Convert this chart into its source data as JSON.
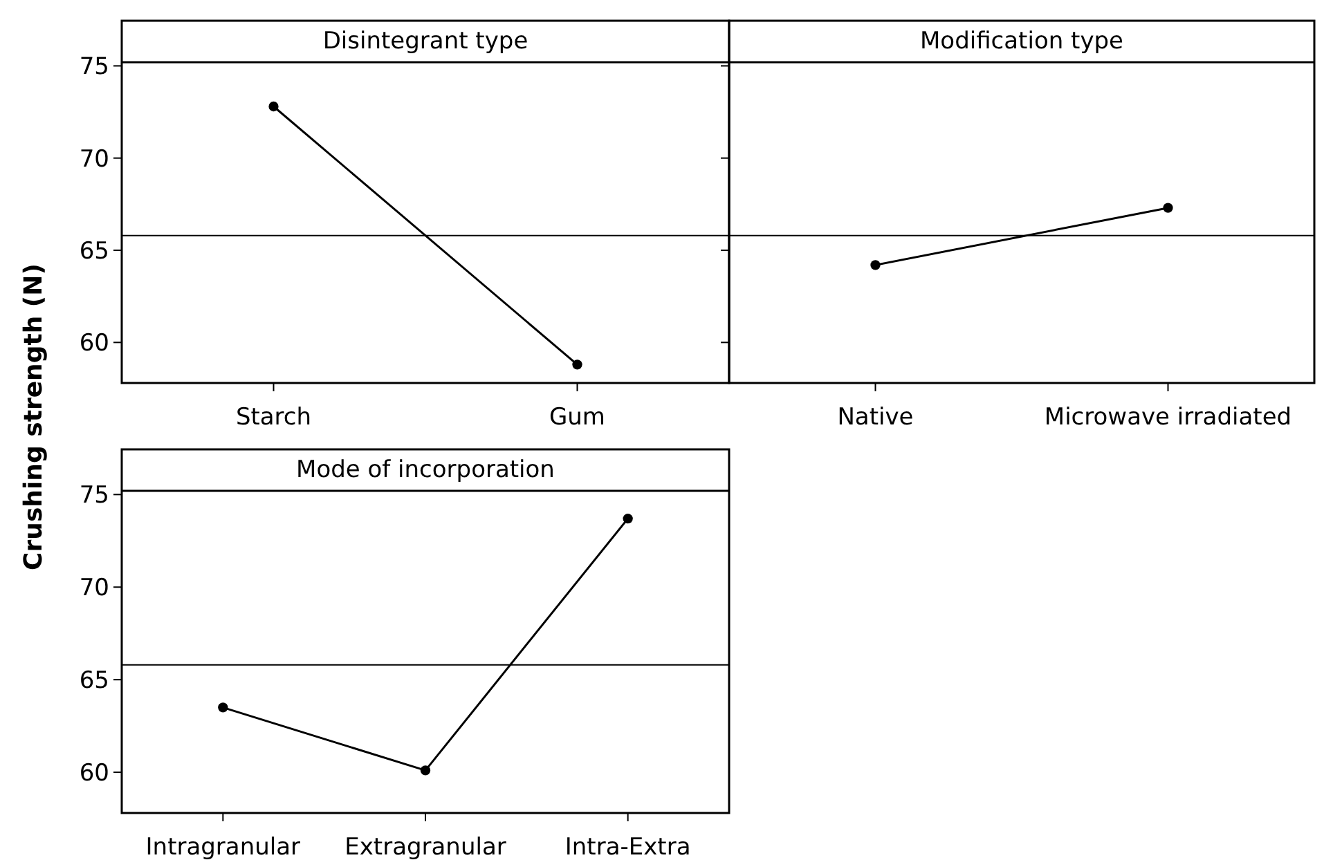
{
  "chart_data": [
    {
      "type": "line",
      "title": "Disintegrant type",
      "ylabel": "Crushing strength (N)",
      "categories": [
        "Starch",
        "Gum"
      ],
      "series": [
        {
          "color": "#000000",
          "values": [
            72.8,
            58.8
          ]
        }
      ],
      "marker": "circle",
      "ylim": [
        57.8,
        75.2
      ],
      "yticks": [
        60,
        65,
        70,
        75
      ],
      "ref_lines": [
        {
          "axis": "y",
          "value": 65.8,
          "color": "#000000"
        }
      ]
    },
    {
      "type": "line",
      "title": "Modification type",
      "categories": [
        "Native",
        "Microwave irradiated"
      ],
      "series": [
        {
          "color": "#000000",
          "values": [
            64.2,
            67.3
          ]
        }
      ],
      "marker": "circle",
      "ylim": [
        57.8,
        75.2
      ],
      "yticks": [
        60,
        65,
        70,
        75
      ],
      "tick_labels": "x",
      "ref_lines": [
        {
          "axis": "y",
          "value": 65.8,
          "color": "#000000"
        }
      ]
    },
    {
      "type": "line",
      "title": "Mode of incorporation",
      "categories": [
        "Intragranular",
        "Extragranular",
        "Intra-Extra"
      ],
      "series": [
        {
          "color": "#000000",
          "values": [
            63.5,
            60.1,
            73.7
          ]
        }
      ],
      "marker": "circle",
      "ylim": [
        57.8,
        75.2
      ],
      "yticks": [
        60,
        65,
        70,
        75
      ],
      "ref_lines": [
        {
          "axis": "y",
          "value": 65.8,
          "color": "#000000"
        }
      ]
    }
  ]
}
